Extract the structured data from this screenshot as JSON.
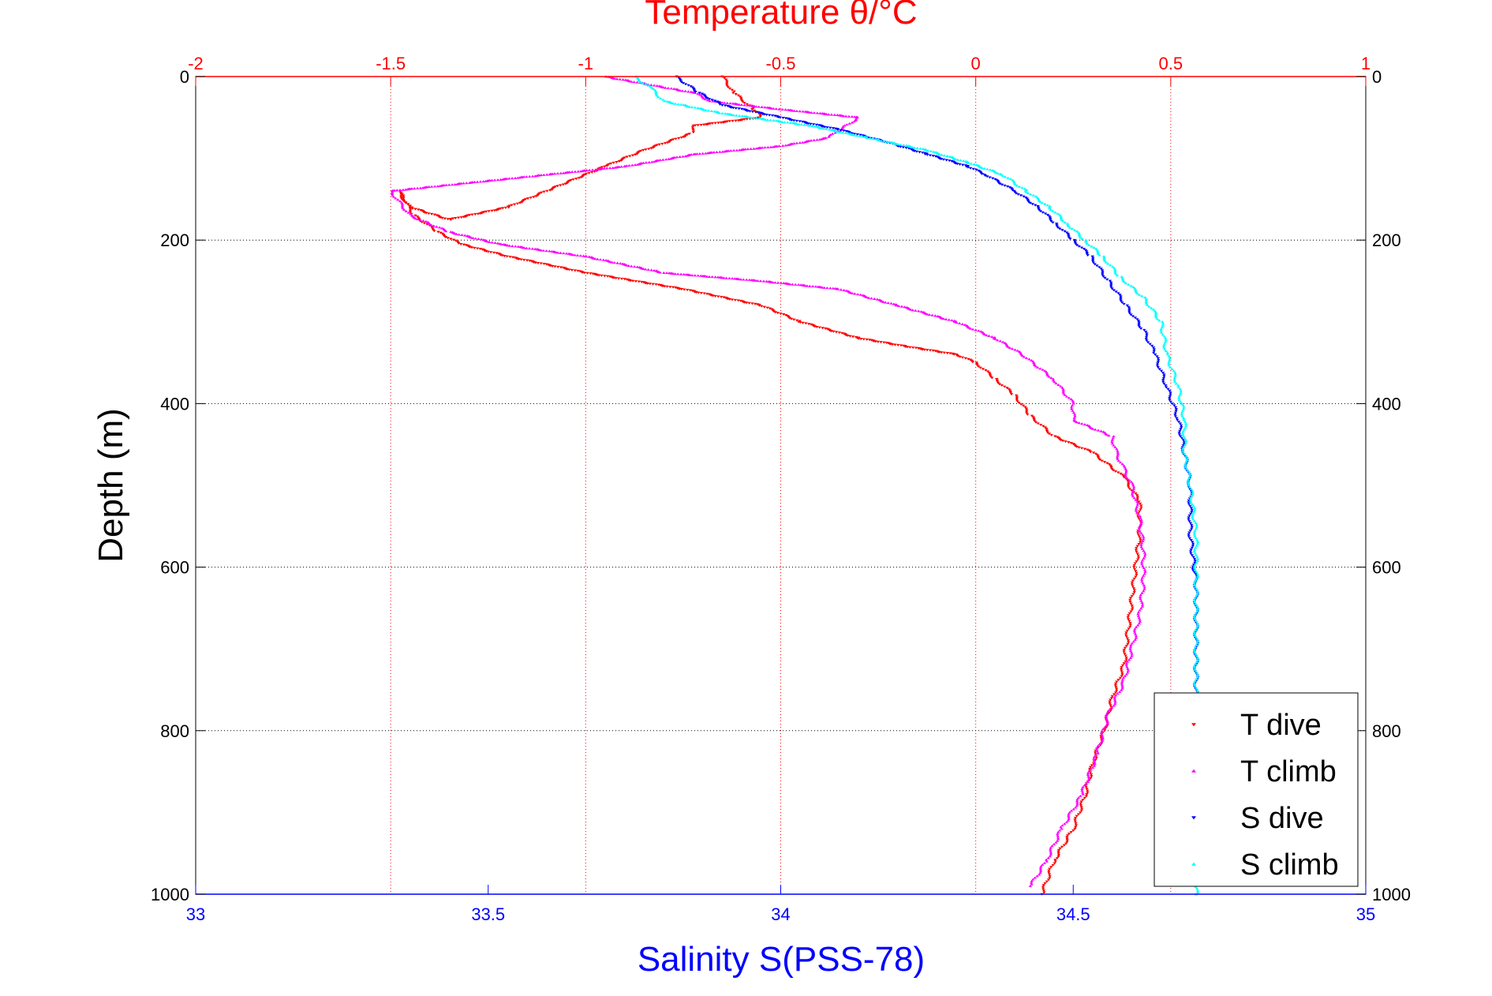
{
  "chart_data": {
    "type": "scatter",
    "title": "Temperature θ/°C",
    "xlabel": "Salinity S(PSS-78)",
    "ylabel": "Depth (m)",
    "y_axis": {
      "range": [
        0,
        1000
      ],
      "reversed": true,
      "ticks": [
        0,
        200,
        400,
        600,
        800,
        1000
      ]
    },
    "temperature_axis": {
      "position": "top",
      "range": [
        -2,
        1
      ],
      "ticks": [
        -2,
        -1.5,
        -1,
        -0.5,
        0,
        0.5,
        1
      ],
      "tick_labels": [
        "-2",
        "-1.5",
        "-1",
        "-0.5",
        "0",
        "0.5",
        "1"
      ],
      "color": "#ff0000"
    },
    "salinity_axis": {
      "position": "bottom",
      "range": [
        33,
        35
      ],
      "ticks": [
        33,
        33.5,
        34,
        34.5,
        35
      ],
      "tick_labels": [
        "33",
        "33.5",
        "34",
        "34.5",
        "35"
      ],
      "color": "#0000ff"
    },
    "grid": true,
    "legend_position": "bottom-right",
    "series": [
      {
        "name": "T dive",
        "axis": "temperature",
        "color": "#ff0000",
        "marker": "triangle-down",
        "points": [
          [
            -0.65,
            0
          ],
          [
            -0.62,
            20
          ],
          [
            -0.57,
            40
          ],
          [
            -0.55,
            50
          ],
          [
            -0.72,
            60
          ],
          [
            -0.73,
            70
          ],
          [
            -0.85,
            90
          ],
          [
            -0.95,
            110
          ],
          [
            -1.1,
            140
          ],
          [
            -1.2,
            160
          ],
          [
            -1.35,
            175
          ],
          [
            -1.45,
            160
          ],
          [
            -1.48,
            140
          ],
          [
            -1.44,
            170
          ],
          [
            -1.38,
            190
          ],
          [
            -1.32,
            205
          ],
          [
            -1.2,
            220
          ],
          [
            -1.0,
            240
          ],
          [
            -0.75,
            260
          ],
          [
            -0.55,
            280
          ],
          [
            -0.45,
            300
          ],
          [
            -0.3,
            320
          ],
          [
            -0.18,
            330
          ],
          [
            -0.05,
            340
          ],
          [
            0.0,
            350
          ],
          [
            0.05,
            370
          ],
          [
            0.1,
            390
          ],
          [
            0.14,
            415
          ],
          [
            0.2,
            440
          ],
          [
            0.3,
            460
          ],
          [
            0.38,
            490
          ],
          [
            0.42,
            520
          ],
          [
            0.42,
            560
          ],
          [
            0.41,
            600
          ],
          [
            0.4,
            640
          ],
          [
            0.39,
            680
          ],
          [
            0.38,
            720
          ],
          [
            0.35,
            760
          ],
          [
            0.33,
            800
          ],
          [
            0.3,
            840
          ],
          [
            0.28,
            880
          ],
          [
            0.25,
            920
          ],
          [
            0.2,
            960
          ],
          [
            0.17,
            1000
          ]
        ]
      },
      {
        "name": "T climb",
        "axis": "temperature",
        "color": "#ff00ff",
        "marker": "triangle-up",
        "points": [
          [
            -0.95,
            0
          ],
          [
            -0.72,
            20
          ],
          [
            -0.68,
            30
          ],
          [
            -0.5,
            40
          ],
          [
            -0.3,
            50
          ],
          [
            -0.38,
            75
          ],
          [
            -0.5,
            85
          ],
          [
            -0.72,
            95
          ],
          [
            -0.9,
            110
          ],
          [
            -1.1,
            120
          ],
          [
            -1.3,
            130
          ],
          [
            -1.5,
            140
          ],
          [
            -1.45,
            170
          ],
          [
            -1.35,
            190
          ],
          [
            -1.22,
            205
          ],
          [
            -1.0,
            220
          ],
          [
            -0.8,
            240
          ],
          [
            -0.55,
            250
          ],
          [
            -0.35,
            260
          ],
          [
            -0.2,
            280
          ],
          [
            -0.05,
            300
          ],
          [
            0.05,
            320
          ],
          [
            0.12,
            340
          ],
          [
            0.2,
            370
          ],
          [
            0.25,
            400
          ],
          [
            0.25,
            420
          ],
          [
            0.35,
            440
          ],
          [
            0.36,
            460
          ],
          [
            0.38,
            480
          ],
          [
            0.4,
            500
          ],
          [
            0.42,
            540
          ],
          [
            0.43,
            580
          ],
          [
            0.43,
            620
          ],
          [
            0.42,
            660
          ],
          [
            0.4,
            700
          ],
          [
            0.38,
            740
          ],
          [
            0.34,
            780
          ],
          [
            0.31,
            830
          ],
          [
            0.27,
            880
          ],
          [
            0.22,
            920
          ],
          [
            0.18,
            960
          ],
          [
            0.14,
            990
          ]
        ]
      },
      {
        "name": "S dive",
        "axis": "salinity",
        "color": "#0000ff",
        "marker": "triangle-down",
        "points": [
          [
            33.82,
            0
          ],
          [
            33.86,
            20
          ],
          [
            33.9,
            35
          ],
          [
            34.0,
            50
          ],
          [
            34.1,
            65
          ],
          [
            34.18,
            80
          ],
          [
            34.25,
            95
          ],
          [
            34.32,
            110
          ],
          [
            34.35,
            120
          ],
          [
            34.4,
            140
          ],
          [
            34.44,
            160
          ],
          [
            34.47,
            180
          ],
          [
            34.5,
            200
          ],
          [
            34.53,
            220
          ],
          [
            34.56,
            250
          ],
          [
            34.59,
            280
          ],
          [
            34.62,
            310
          ],
          [
            34.64,
            340
          ],
          [
            34.66,
            380
          ],
          [
            34.68,
            420
          ],
          [
            34.69,
            460
          ],
          [
            34.7,
            500
          ],
          [
            34.7,
            560
          ],
          [
            34.71,
            620
          ],
          [
            34.71,
            700
          ],
          [
            34.71,
            760
          ]
        ]
      },
      {
        "name": "S climb",
        "axis": "salinity",
        "color": "#00ffff",
        "marker": "triangle-up",
        "points": [
          [
            33.75,
            0
          ],
          [
            33.78,
            15
          ],
          [
            33.8,
            30
          ],
          [
            33.9,
            45
          ],
          [
            34.05,
            60
          ],
          [
            34.15,
            75
          ],
          [
            34.25,
            90
          ],
          [
            34.32,
            105
          ],
          [
            34.38,
            120
          ],
          [
            34.42,
            140
          ],
          [
            34.46,
            160
          ],
          [
            34.49,
            180
          ],
          [
            34.52,
            200
          ],
          [
            34.55,
            220
          ],
          [
            34.58,
            245
          ],
          [
            34.62,
            270
          ],
          [
            34.65,
            300
          ],
          [
            34.66,
            340
          ],
          [
            34.68,
            380
          ],
          [
            34.69,
            420
          ],
          [
            34.69,
            460
          ],
          [
            34.7,
            500
          ],
          [
            34.71,
            560
          ],
          [
            34.71,
            620
          ],
          [
            34.71,
            700
          ],
          [
            34.71,
            760
          ],
          [
            34.71,
            1000
          ]
        ]
      }
    ]
  }
}
